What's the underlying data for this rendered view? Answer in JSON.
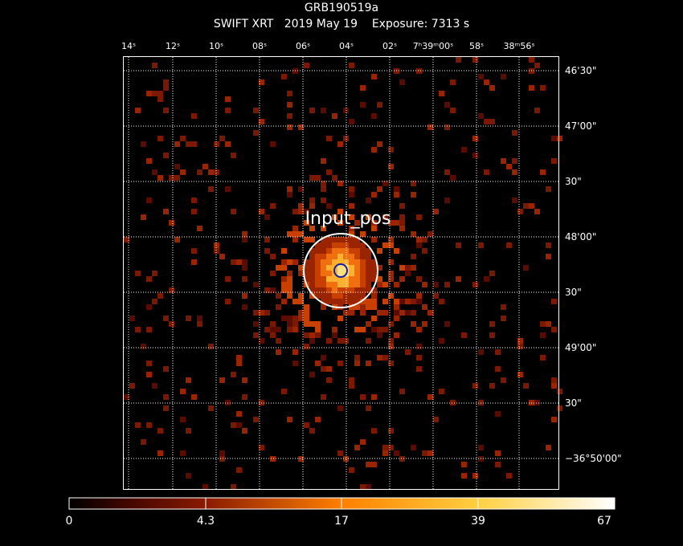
{
  "header": {
    "title": "GRB190519a",
    "instrument": "SWIFT XRT",
    "date": "2019 May 19",
    "exposure": "Exposure: 7313 s"
  },
  "ra_ticks": [
    "14ˢ",
    "12ˢ",
    "10ˢ",
    "08ˢ",
    "06ˢ",
    "04ˢ",
    "02ˢ",
    "7ʰ39ᵐ00ˢ",
    "58ˢ",
    "38ᵐ56ˢ"
  ],
  "dec_ticks": [
    "46'30\"",
    "47'00\"",
    "30\"",
    "48'00\"",
    "30\"",
    "49'00\"",
    "30\"",
    "−36°50'00\""
  ],
  "source_label": "Input_pos",
  "colorbar": {
    "labels": [
      "0",
      "4.3",
      "17",
      "39",
      "67"
    ],
    "colors": [
      "#000000",
      "#5a0a00",
      "#b03000",
      "#f08010",
      "#ffd040",
      "#ffffff"
    ]
  },
  "colors": {
    "circle_outer": "#ffffff",
    "circle_inner": "#1020a0",
    "grid": "#ffffff"
  }
}
